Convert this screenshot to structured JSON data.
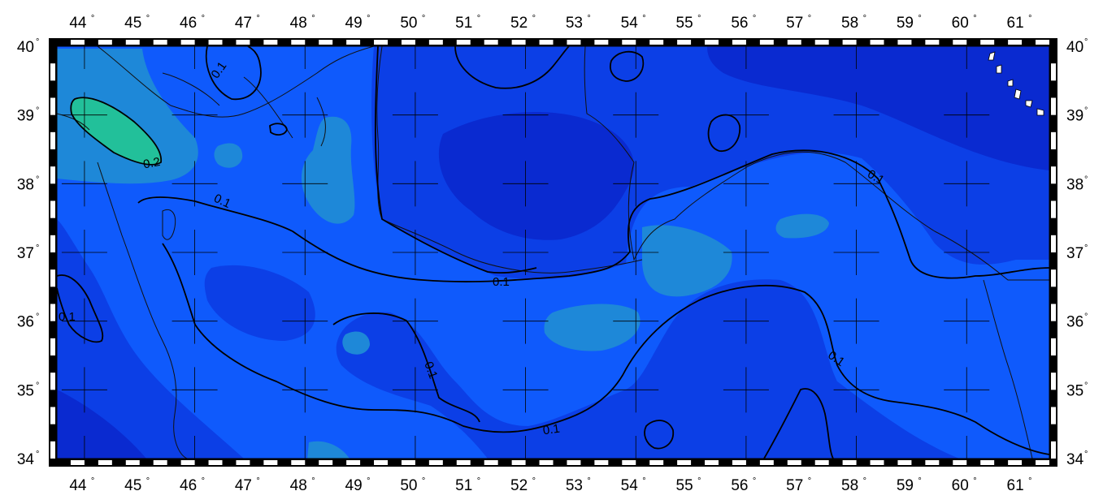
{
  "map": {
    "lon_ticks": [
      "44",
      "45",
      "46",
      "47",
      "48",
      "49",
      "50",
      "51",
      "52",
      "53",
      "54",
      "55",
      "56",
      "57",
      "58",
      "59",
      "60",
      "61"
    ],
    "lat_ticks": [
      "40",
      "39",
      "38",
      "37",
      "36",
      "35",
      "34"
    ],
    "degree_symbol": "°",
    "lon_range": [
      43.5,
      61.5
    ],
    "lat_range": [
      34,
      40
    ],
    "contour_labels": [
      "0.1",
      "0.2",
      "0.1",
      "0.1",
      "0.1",
      "0.1",
      "0.1",
      "0.1",
      "0.1"
    ],
    "colors": {
      "level_1": "#0a2ad0",
      "level_2": "#0c3fe6",
      "level_3": "#0f5afc",
      "level_4": "#1e88d8",
      "level_5": "#22c09a",
      "frame": "#000000"
    },
    "grid_crosses": "on",
    "frame_style": "checkered"
  }
}
